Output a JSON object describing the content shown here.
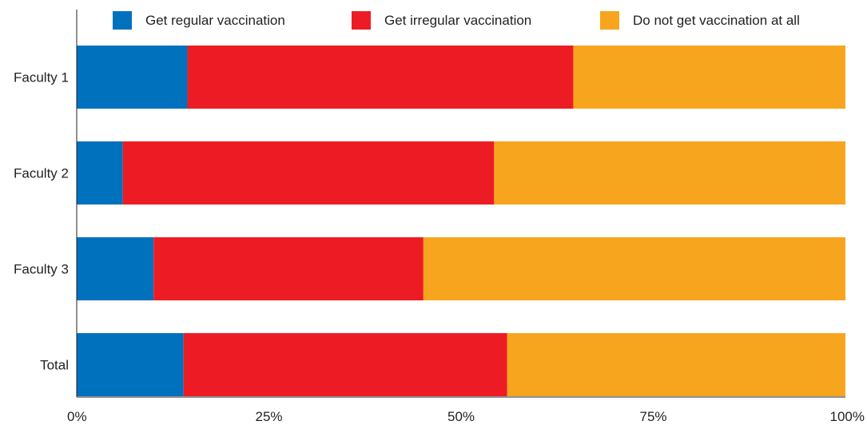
{
  "chart_data": {
    "type": "bar",
    "orientation": "horizontal",
    "stacked": true,
    "normalized": true,
    "title": "",
    "xlabel": "",
    "ylabel": "",
    "categories": [
      "Faculty 1",
      "Faculty 2",
      "Faculty 3",
      "Total"
    ],
    "series": [
      {
        "name": "Get regular vaccination",
        "color": "#0071bc",
        "values": [
          14.4,
          6.0,
          10.0,
          13.9
        ]
      },
      {
        "name": "Get irregular vaccination",
        "color": "#ed1c24",
        "values": [
          50.2,
          48.3,
          35.1,
          42.1
        ]
      },
      {
        "name": "Do not get vaccination at all",
        "color": "#f7a51e",
        "values": [
          35.4,
          45.7,
          54.9,
          44.0
        ]
      }
    ],
    "xlim": [
      0,
      100
    ],
    "xticks": [
      0,
      25,
      50,
      75,
      100
    ],
    "xtick_labels": [
      "0%",
      "25%",
      "50%",
      "75%",
      "100%"
    ],
    "legend_position": "top",
    "grid": false
  }
}
